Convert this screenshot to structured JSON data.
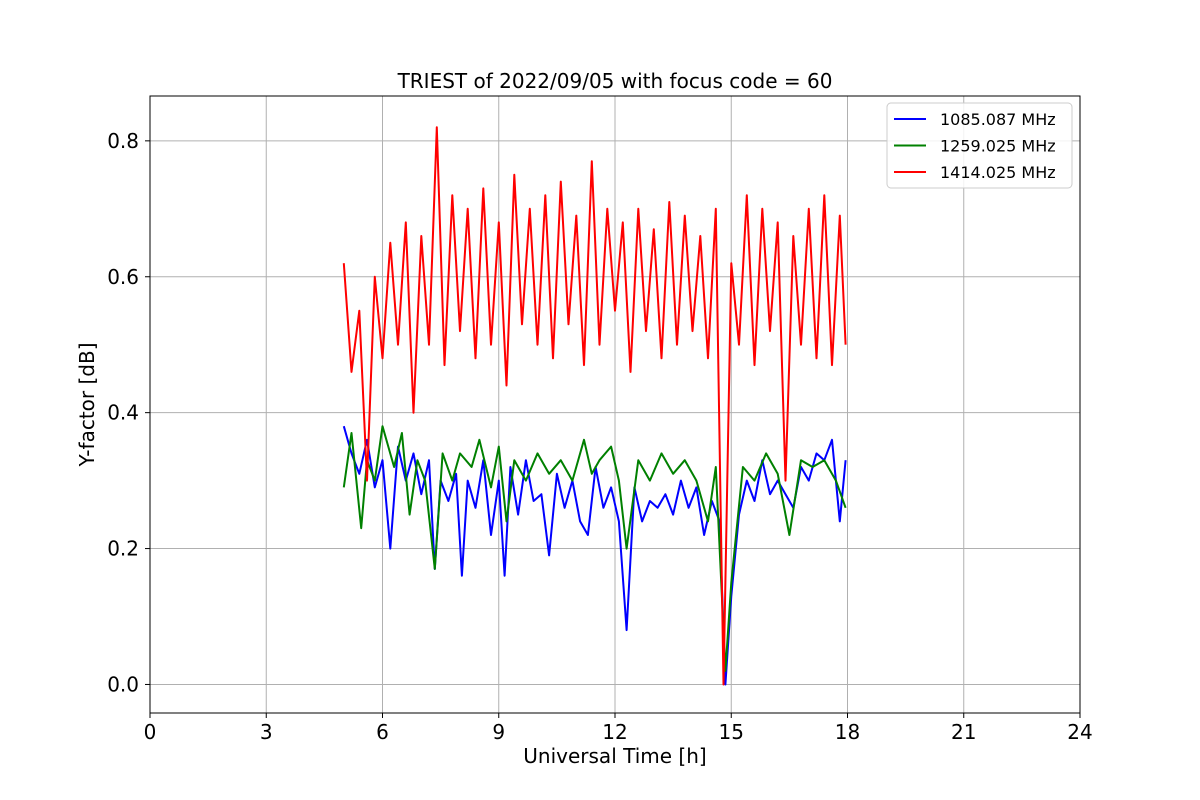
{
  "chart_data": {
    "type": "line",
    "title": "TRIEST of 2022/09/05 with focus code = 60",
    "xlabel": "Universal Time [h]",
    "ylabel": "Y-factor [dB]",
    "xlim": [
      0,
      24
    ],
    "ylim": [
      -0.042,
      0.866
    ],
    "xticks": [
      0,
      3,
      6,
      9,
      12,
      15,
      18,
      21,
      24
    ],
    "yticks": [
      0.0,
      0.2,
      0.4,
      0.6,
      0.8
    ],
    "ytick_labels": [
      "0.0",
      "0.2",
      "0.4",
      "0.6",
      "0.8"
    ],
    "grid": true,
    "legend_position": "top-right",
    "series": [
      {
        "name": "1085.087 MHz",
        "color": "#0000ff",
        "x": [
          5.0,
          5.2,
          5.4,
          5.6,
          5.8,
          6.0,
          6.2,
          6.4,
          6.6,
          6.8,
          7.0,
          7.2,
          7.35,
          7.5,
          7.7,
          7.9,
          8.05,
          8.2,
          8.4,
          8.6,
          8.8,
          9.0,
          9.15,
          9.3,
          9.5,
          9.7,
          9.9,
          10.1,
          10.3,
          10.5,
          10.7,
          10.9,
          11.1,
          11.3,
          11.5,
          11.7,
          11.9,
          12.1,
          12.3,
          12.5,
          12.7,
          12.9,
          13.1,
          13.3,
          13.5,
          13.7,
          13.9,
          14.1,
          14.3,
          14.5,
          14.7,
          14.85,
          15.0,
          15.2,
          15.4,
          15.6,
          15.8,
          16.0,
          16.2,
          16.4,
          16.6,
          16.8,
          17.0,
          17.2,
          17.4,
          17.6,
          17.8,
          17.95
        ],
        "values": [
          0.38,
          0.34,
          0.31,
          0.36,
          0.29,
          0.33,
          0.2,
          0.35,
          0.3,
          0.34,
          0.28,
          0.33,
          0.17,
          0.3,
          0.27,
          0.31,
          0.16,
          0.3,
          0.26,
          0.33,
          0.22,
          0.3,
          0.16,
          0.32,
          0.25,
          0.33,
          0.27,
          0.28,
          0.19,
          0.31,
          0.26,
          0.3,
          0.24,
          0.22,
          0.32,
          0.26,
          0.29,
          0.24,
          0.08,
          0.29,
          0.24,
          0.27,
          0.26,
          0.28,
          0.25,
          0.3,
          0.26,
          0.29,
          0.22,
          0.27,
          0.24,
          0.0,
          0.13,
          0.25,
          0.3,
          0.27,
          0.33,
          0.28,
          0.3,
          0.28,
          0.26,
          0.32,
          0.3,
          0.34,
          0.33,
          0.36,
          0.24,
          0.33
        ]
      },
      {
        "name": "1259.025 MHz",
        "color": "#008000",
        "x": [
          5.0,
          5.2,
          5.45,
          5.6,
          5.8,
          6.0,
          6.3,
          6.5,
          6.7,
          6.9,
          7.1,
          7.35,
          7.55,
          7.8,
          8.0,
          8.3,
          8.5,
          8.8,
          9.0,
          9.2,
          9.4,
          9.7,
          10.0,
          10.3,
          10.6,
          10.9,
          11.2,
          11.4,
          11.6,
          11.9,
          12.1,
          12.3,
          12.6,
          12.9,
          13.2,
          13.5,
          13.8,
          14.1,
          14.4,
          14.6,
          14.85,
          15.0,
          15.3,
          15.6,
          15.9,
          16.2,
          16.5,
          16.8,
          17.1,
          17.4,
          17.7,
          17.95
        ],
        "values": [
          0.29,
          0.37,
          0.23,
          0.33,
          0.3,
          0.38,
          0.32,
          0.37,
          0.25,
          0.33,
          0.3,
          0.17,
          0.34,
          0.3,
          0.34,
          0.32,
          0.36,
          0.29,
          0.35,
          0.24,
          0.33,
          0.3,
          0.34,
          0.31,
          0.33,
          0.3,
          0.36,
          0.31,
          0.33,
          0.35,
          0.3,
          0.2,
          0.33,
          0.3,
          0.34,
          0.31,
          0.33,
          0.3,
          0.24,
          0.32,
          0.02,
          0.15,
          0.32,
          0.3,
          0.34,
          0.31,
          0.22,
          0.33,
          0.32,
          0.33,
          0.3,
          0.26
        ]
      },
      {
        "name": "1414.025 MHz",
        "color": "#ff0000",
        "x": [
          5.0,
          5.2,
          5.4,
          5.6,
          5.8,
          6.0,
          6.2,
          6.4,
          6.6,
          6.8,
          7.0,
          7.2,
          7.4,
          7.6,
          7.8,
          8.0,
          8.2,
          8.4,
          8.6,
          8.8,
          9.0,
          9.2,
          9.4,
          9.6,
          9.8,
          10.0,
          10.2,
          10.4,
          10.6,
          10.8,
          11.0,
          11.2,
          11.4,
          11.6,
          11.8,
          12.0,
          12.2,
          12.4,
          12.6,
          12.8,
          13.0,
          13.2,
          13.4,
          13.6,
          13.8,
          14.0,
          14.2,
          14.4,
          14.6,
          14.8,
          15.0,
          15.2,
          15.4,
          15.6,
          15.8,
          16.0,
          16.2,
          16.4,
          16.6,
          16.8,
          17.0,
          17.2,
          17.4,
          17.6,
          17.8,
          17.95
        ],
        "values": [
          0.62,
          0.46,
          0.55,
          0.3,
          0.6,
          0.48,
          0.65,
          0.5,
          0.68,
          0.4,
          0.66,
          0.5,
          0.82,
          0.47,
          0.72,
          0.52,
          0.7,
          0.48,
          0.73,
          0.5,
          0.68,
          0.44,
          0.75,
          0.53,
          0.7,
          0.5,
          0.72,
          0.48,
          0.74,
          0.53,
          0.69,
          0.47,
          0.77,
          0.5,
          0.7,
          0.55,
          0.68,
          0.46,
          0.7,
          0.52,
          0.67,
          0.48,
          0.71,
          0.5,
          0.69,
          0.52,
          0.66,
          0.48,
          0.7,
          0.0,
          0.62,
          0.5,
          0.72,
          0.47,
          0.7,
          0.52,
          0.68,
          0.3,
          0.66,
          0.5,
          0.7,
          0.48,
          0.72,
          0.47,
          0.69,
          0.5
        ]
      }
    ]
  }
}
